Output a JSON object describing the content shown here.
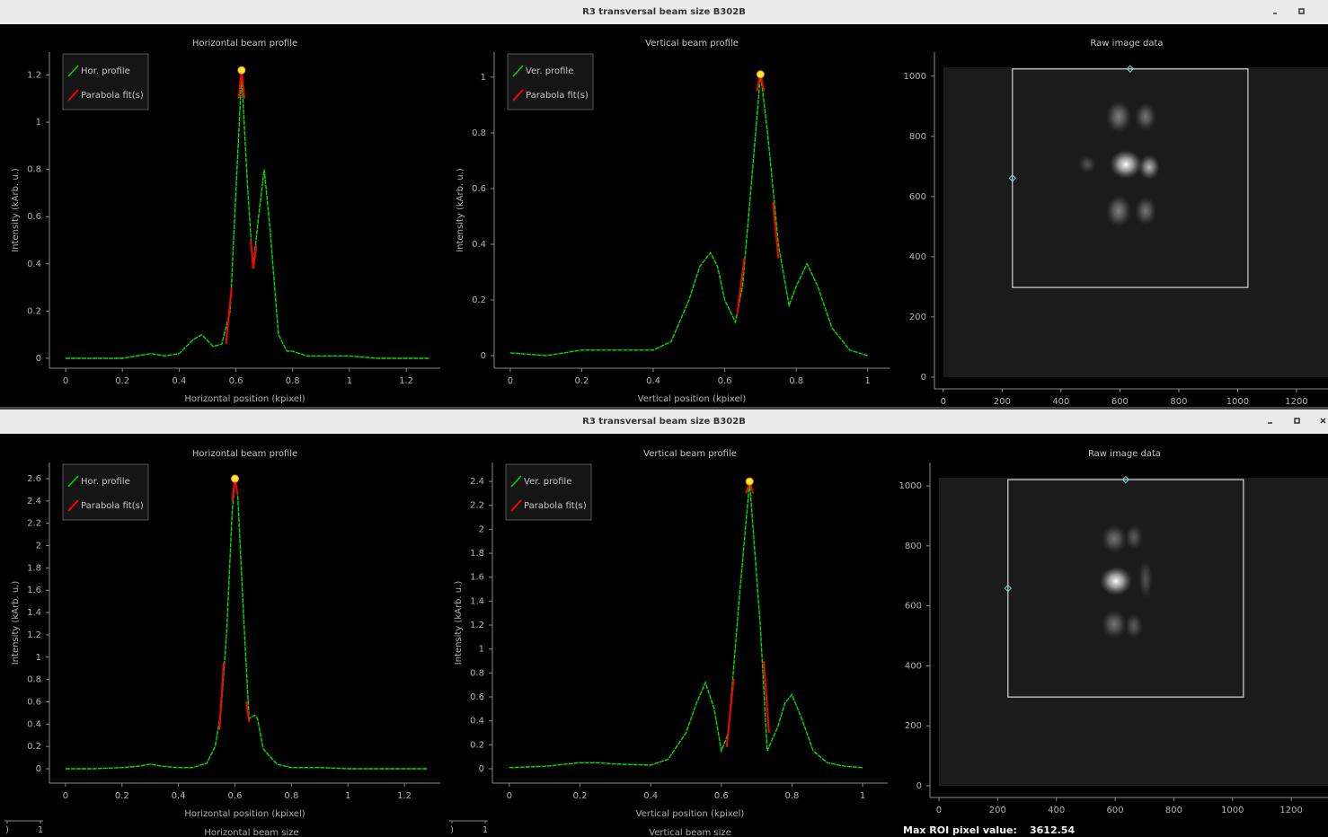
{
  "windows": [
    {
      "title": "R3 transversal beam size B302B",
      "plots": [
        {
          "type": "line",
          "title": "Horizontal beam profile",
          "x_label": "Horizontal position (kpixel)",
          "y_label": "Intensity (kArb. u.)",
          "xlim": [
            -0.057,
            1.32
          ],
          "ylim": [
            -0.042,
            1.297
          ],
          "xticks": [
            0,
            0.2,
            0.4,
            0.6,
            0.8,
            1,
            1.2
          ],
          "yticks": [
            0,
            0.2,
            0.4,
            0.6,
            0.8,
            1,
            1.2
          ],
          "series": [
            {
              "name": "Hor. profile",
              "color": "#00e000",
              "x": [
                0,
                0.1,
                0.2,
                0.3,
                0.35,
                0.4,
                0.45,
                0.48,
                0.52,
                0.55,
                0.58,
                0.6,
                0.62,
                0.64,
                0.66,
                0.68,
                0.7,
                0.72,
                0.75,
                0.78,
                0.8,
                0.85,
                0.9,
                1.0,
                1.1,
                1.28
              ],
              "values": [
                0,
                0,
                0,
                0.02,
                0.01,
                0.02,
                0.08,
                0.1,
                0.05,
                0.06,
                0.2,
                0.7,
                1.2,
                0.75,
                0.38,
                0.6,
                0.8,
                0.55,
                0.1,
                0.03,
                0.03,
                0.01,
                0.01,
                0.01,
                0,
                0
              ]
            },
            {
              "name": "Parabola fit(s)",
              "color": "#ff0000",
              "x": [
                0.565,
                0.585,
                null,
                0.61,
                0.62,
                0.63,
                null,
                0.652,
                0.662,
                0.672
              ],
              "values": [
                0.06,
                0.3,
                null,
                1.1,
                1.22,
                1.1,
                null,
                0.5,
                0.38,
                0.48
              ]
            }
          ],
          "peak": {
            "x": 0.62,
            "y": 1.22
          }
        },
        {
          "type": "line",
          "title": "Vertical beam profile",
          "x_label": "Vertical position (kpixel)",
          "y_label": "Intensity (kArb. u.)",
          "xlim": [
            -0.045,
            1.061
          ],
          "ylim": [
            -0.045,
            1.09
          ],
          "xticks": [
            0,
            0.2,
            0.4,
            0.6,
            0.8,
            1
          ],
          "yticks": [
            0,
            0.2,
            0.4,
            0.6,
            0.8,
            1
          ],
          "series": [
            {
              "name": "Ver. profile",
              "color": "#00e000",
              "x": [
                0,
                0.1,
                0.2,
                0.3,
                0.4,
                0.45,
                0.5,
                0.53,
                0.56,
                0.58,
                0.6,
                0.63,
                0.65,
                0.68,
                0.7,
                0.72,
                0.75,
                0.78,
                0.8,
                0.83,
                0.86,
                0.9,
                0.95,
                1.0
              ],
              "values": [
                0.01,
                0,
                0.02,
                0.02,
                0.02,
                0.05,
                0.2,
                0.32,
                0.37,
                0.32,
                0.2,
                0.12,
                0.25,
                0.7,
                1.01,
                0.8,
                0.4,
                0.18,
                0.25,
                0.33,
                0.25,
                0.1,
                0.02,
                0
              ]
            },
            {
              "name": "Parabola fit(s)",
              "color": "#ff0000",
              "x": [
                0.635,
                0.655,
                null,
                0.69,
                0.7,
                0.71,
                null,
                0.735,
                0.75
              ],
              "values": [
                0.15,
                0.35,
                null,
                0.95,
                1.01,
                0.95,
                null,
                0.55,
                0.35
              ]
            }
          ],
          "peak": {
            "x": 0.7,
            "y": 1.01
          }
        },
        {
          "type": "image",
          "title": "Raw image data",
          "xlim": [
            -30,
            1307
          ],
          "ylim": [
            -39,
            1080
          ],
          "xticks": [
            0,
            200,
            400,
            600,
            800,
            1000,
            1200
          ],
          "yticks": [
            0,
            200,
            400,
            600,
            800,
            1000
          ],
          "roi": {
            "x": [
              235,
              1035
            ],
            "y": [
              298,
              1024
            ]
          }
        }
      ]
    },
    {
      "title": "R3 transversal beam size B302B",
      "plots": [
        {
          "type": "line",
          "title": "Horizontal beam profile",
          "x_label": "Horizontal position (kpixel)",
          "y_label": "Intensity (kArb. u.)",
          "xlim": [
            -0.057,
            1.327
          ],
          "ylim": [
            -0.129,
            2.745
          ],
          "xticks": [
            0,
            0.2,
            0.4,
            0.6,
            0.8,
            1,
            1.2
          ],
          "yticks": [
            0,
            0.2,
            0.4,
            0.6,
            0.8,
            1,
            1.2,
            1.4,
            1.6,
            1.8,
            2,
            2.2,
            2.4,
            2.6
          ],
          "series": [
            {
              "name": "Hor. profile",
              "color": "#00e000",
              "x": [
                0,
                0.1,
                0.2,
                0.25,
                0.3,
                0.35,
                0.4,
                0.45,
                0.5,
                0.53,
                0.55,
                0.57,
                0.59,
                0.6,
                0.61,
                0.63,
                0.65,
                0.67,
                0.68,
                0.7,
                0.72,
                0.75,
                0.8,
                0.9,
                1.0,
                1.28
              ],
              "values": [
                0,
                0,
                0.01,
                0.02,
                0.04,
                0.02,
                0.01,
                0.01,
                0.05,
                0.2,
                0.5,
                1.2,
                2.3,
                2.6,
                2.45,
                1.4,
                0.45,
                0.48,
                0.45,
                0.18,
                0.12,
                0.04,
                0.01,
                0.01,
                0,
                0
              ]
            },
            {
              "name": "Parabola fit(s)",
              "color": "#ff0000",
              "x": [
                0.545,
                0.56,
                null,
                0.59,
                0.6,
                0.61,
                null,
                0.64,
                0.65
              ],
              "values": [
                0.35,
                0.95,
                null,
                2.4,
                2.6,
                2.45,
                null,
                0.6,
                0.42
              ]
            }
          ],
          "peak": {
            "x": 0.6,
            "y": 2.6
          }
        },
        {
          "type": "line",
          "title": "Vertical beam profile",
          "x_label": "Vertical position (kpixel)",
          "y_label": "Intensity (kArb. u.)",
          "xlim": [
            -0.048,
            1.071
          ],
          "ylim": [
            -0.12,
            2.558
          ],
          "xticks": [
            0,
            0.2,
            0.4,
            0.6,
            0.8,
            1
          ],
          "yticks": [
            0,
            0.2,
            0.4,
            0.6,
            0.8,
            1,
            1.2,
            1.4,
            1.6,
            1.8,
            2,
            2.2,
            2.4
          ],
          "series": [
            {
              "name": "Ver. profile",
              "color": "#00e000",
              "x": [
                0,
                0.1,
                0.2,
                0.25,
                0.3,
                0.4,
                0.45,
                0.5,
                0.53,
                0.555,
                0.58,
                0.6,
                0.62,
                0.65,
                0.68,
                0.71,
                0.73,
                0.76,
                0.78,
                0.8,
                0.83,
                0.86,
                0.9,
                0.95,
                1.0
              ],
              "values": [
                0.01,
                0.02,
                0.05,
                0.05,
                0.04,
                0.03,
                0.08,
                0.3,
                0.55,
                0.72,
                0.5,
                0.15,
                0.3,
                1.4,
                2.4,
                1.2,
                0.15,
                0.35,
                0.55,
                0.62,
                0.4,
                0.15,
                0.05,
                0.02,
                0.01
              ]
            },
            {
              "name": "Parabola fit(s)",
              "color": "#ff0000",
              "x": [
                0.615,
                0.635,
                null,
                0.67,
                0.68,
                0.69,
                null,
                0.72,
                0.735
              ],
              "values": [
                0.18,
                0.75,
                null,
                2.3,
                2.4,
                2.3,
                null,
                0.9,
                0.3
              ]
            }
          ],
          "peak": {
            "x": 0.68,
            "y": 2.4
          }
        },
        {
          "type": "image",
          "title": "Raw image data",
          "xlim": [
            -30.6,
            1325
          ],
          "ylim": [
            -39,
            1078
          ],
          "xticks": [
            0,
            200,
            400,
            600,
            800,
            1000,
            1200
          ],
          "yticks": [
            0,
            200,
            400,
            600,
            800,
            1000
          ],
          "roi": {
            "x": [
              235,
              1037
            ],
            "y": [
              296,
              1021
            ]
          }
        }
      ],
      "size_plots": [
        {
          "title": "Horizontal beam size",
          "xticks": [
            {
              "value": 0,
              "label": ")"
            },
            1
          ]
        },
        {
          "title": "Vertical beam size",
          "xticks": [
            {
              "value": 0,
              "label": ")"
            },
            1
          ]
        }
      ],
      "max_roi_label": "Max ROI pixel value:",
      "max_roi_value": 3612.54
    }
  ]
}
